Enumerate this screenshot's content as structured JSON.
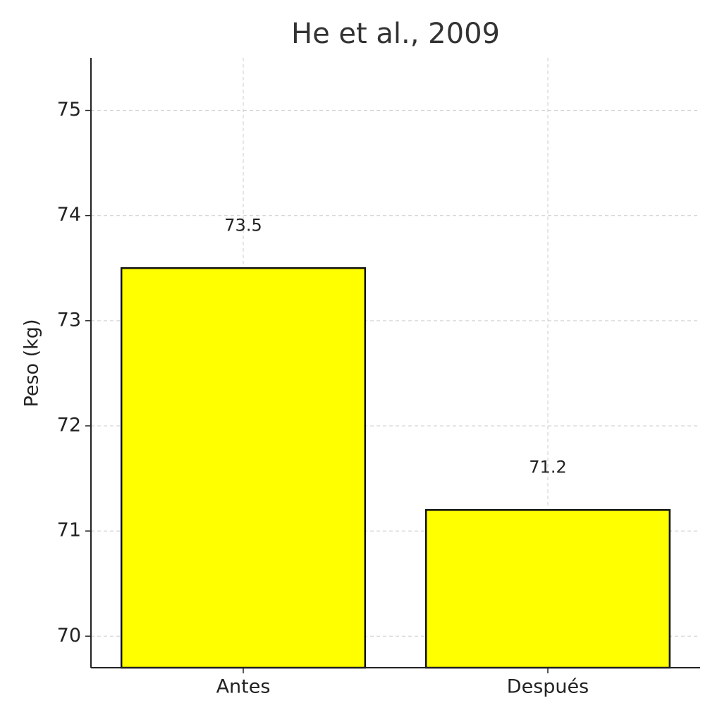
{
  "chart_data": {
    "type": "bar",
    "title": "He et al., 2009",
    "y_label": "Peso (kg)",
    "categories": [
      "Antes",
      "Después"
    ],
    "values": [
      73.5,
      71.2
    ],
    "color": "#ffff00",
    "ylim": [
      69.7,
      75.5
    ],
    "yticks": [
      70,
      71,
      72,
      73,
      74,
      75
    ],
    "grid": true
  }
}
